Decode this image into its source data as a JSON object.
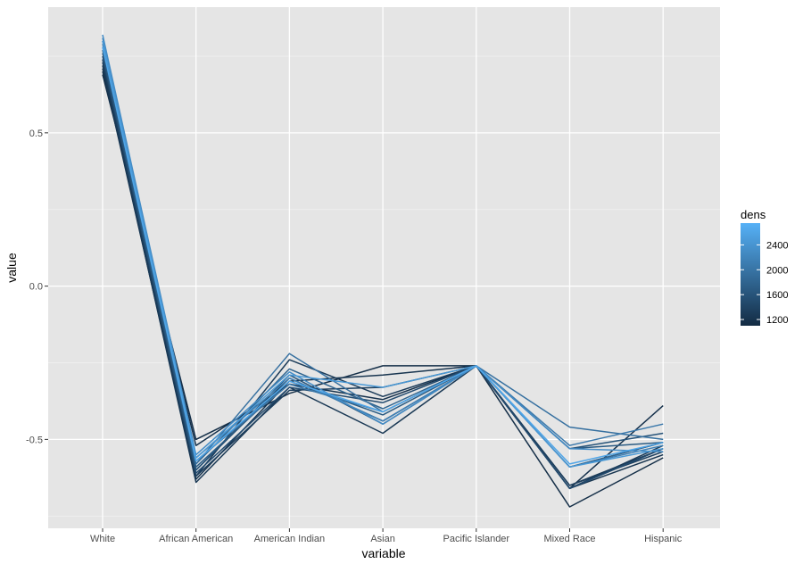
{
  "chart_data": {
    "type": "line",
    "xlabel": "variable",
    "ylabel": "value",
    "categories": [
      "White",
      "African American",
      "American Indian",
      "Asian",
      "Pacific Islander",
      "Mixed Race",
      "Hispanic"
    ],
    "y_ticks": [
      {
        "value": 0.5,
        "label": "0.5"
      },
      {
        "value": 0.0,
        "label": "0.0"
      },
      {
        "value": -0.5,
        "label": "-0.5"
      }
    ],
    "ylim": [
      -0.79,
      0.91
    ],
    "grid": true,
    "legend": {
      "title": "dens",
      "placement": "right",
      "low_color": "#132B43",
      "high_color": "#56B1F7",
      "range": [
        1100,
        2750
      ],
      "breaks": [
        {
          "value": 2400,
          "label": "2400"
        },
        {
          "value": 2000,
          "label": "2000"
        },
        {
          "value": 1600,
          "label": "1600"
        },
        {
          "value": 1200,
          "label": "1200"
        }
      ]
    },
    "series": [
      {
        "dens": 1150,
        "values": [
          0.69,
          -0.5,
          -0.35,
          -0.26,
          -0.26,
          -0.72,
          -0.56
        ]
      },
      {
        "dens": 1180,
        "values": [
          0.7,
          -0.52,
          -0.32,
          -0.37,
          -0.26,
          -0.66,
          -0.39
        ]
      },
      {
        "dens": 1220,
        "values": [
          0.71,
          -0.63,
          -0.31,
          -0.29,
          -0.26,
          -0.66,
          -0.55
        ]
      },
      {
        "dens": 1260,
        "values": [
          0.72,
          -0.64,
          -0.33,
          -0.48,
          -0.26,
          -0.65,
          -0.53
        ]
      },
      {
        "dens": 1300,
        "values": [
          0.73,
          -0.62,
          -0.24,
          -0.36,
          -0.26,
          -0.66,
          -0.52
        ]
      },
      {
        "dens": 1350,
        "values": [
          0.74,
          -0.62,
          -0.34,
          -0.33,
          -0.26,
          -0.65,
          -0.54
        ]
      },
      {
        "dens": 1400,
        "values": [
          0.74,
          -0.6,
          -0.3,
          -0.44,
          -0.26,
          -0.59,
          -0.51
        ]
      },
      {
        "dens": 1500,
        "values": [
          0.75,
          -0.61,
          -0.33,
          -0.38,
          -0.26,
          -0.66,
          -0.53
        ]
      },
      {
        "dens": 1600,
        "values": [
          0.76,
          -0.6,
          -0.29,
          -0.45,
          -0.26,
          -0.53,
          -0.48
        ]
      },
      {
        "dens": 1700,
        "values": [
          0.77,
          -0.59,
          -0.31,
          -0.42,
          -0.26,
          -0.53,
          -0.51
        ]
      },
      {
        "dens": 1800,
        "values": [
          0.78,
          -0.58,
          -0.27,
          -0.4,
          -0.26,
          -0.59,
          -0.51
        ]
      },
      {
        "dens": 1950,
        "values": [
          0.79,
          -0.58,
          -0.22,
          -0.41,
          -0.26,
          -0.46,
          -0.5
        ]
      },
      {
        "dens": 2050,
        "values": [
          0.8,
          -0.57,
          -0.32,
          -0.41,
          -0.26,
          -0.52,
          -0.45
        ]
      },
      {
        "dens": 2150,
        "values": [
          0.81,
          -0.56,
          -0.3,
          -0.44,
          -0.26,
          -0.59,
          -0.52
        ]
      },
      {
        "dens": 2300,
        "values": [
          0.82,
          -0.55,
          -0.28,
          -0.45,
          -0.26,
          -0.53,
          -0.54
        ]
      },
      {
        "dens": 2450,
        "values": [
          0.8,
          -0.56,
          -0.29,
          -0.33,
          -0.26,
          -0.59,
          -0.53
        ]
      },
      {
        "dens": 2600,
        "values": [
          0.78,
          -0.57,
          -0.31,
          -0.41,
          -0.26,
          -0.58,
          -0.51
        ]
      }
    ]
  }
}
